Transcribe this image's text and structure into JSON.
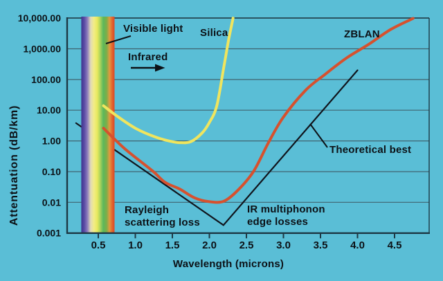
{
  "figure": {
    "background_color": "#5abed6",
    "grid_color": "#40636f",
    "frame_color": "#1d3844",
    "text_color": "#0c1116"
  },
  "chart_data": {
    "type": "line",
    "title": "",
    "xlabel": "Wavelength (microns)",
    "ylabel": "Attentuation (dB/km)",
    "y_scale": "log",
    "x_scale": "linear",
    "xlim": [
      0.08,
      4.97
    ],
    "ylim": [
      0.001,
      10000
    ],
    "grid": "horizontal",
    "legend": "inline-labels",
    "x_ticks": [
      0.5,
      1.0,
      1.5,
      2.0,
      2.5,
      3.0,
      3.5,
      4.0,
      4.5
    ],
    "x_tick_labels": [
      "0.5",
      "1.0",
      "1.5",
      "2.0",
      "2.5",
      "3.0",
      "3.5",
      "4.0",
      "4.5"
    ],
    "y_ticks": [
      10000,
      1000,
      100,
      10,
      1,
      0.1,
      0.01,
      0.001
    ],
    "y_tick_labels": [
      "10,000.00",
      "1,000.00",
      "100.00",
      "10.00",
      "1.00",
      "0.10",
      "0.01",
      "0.001"
    ],
    "series": [
      {
        "name": "Silica",
        "color": "#f0e55e",
        "stroke_width": 4,
        "smooth": true,
        "points": [
          [
            0.57,
            14
          ],
          [
            0.75,
            6.5
          ],
          [
            1.0,
            2.6
          ],
          [
            1.25,
            1.4
          ],
          [
            1.45,
            1.0
          ],
          [
            1.6,
            0.88
          ],
          [
            1.75,
            0.95
          ],
          [
            1.9,
            1.8
          ],
          [
            2.0,
            4.0
          ],
          [
            2.1,
            14
          ],
          [
            2.2,
            300
          ],
          [
            2.26,
            2000
          ],
          [
            2.32,
            10000
          ]
        ]
      },
      {
        "name": "ZBLAN",
        "color": "#d6512e",
        "stroke_width": 4,
        "smooth": true,
        "points": [
          [
            0.57,
            2.6
          ],
          [
            0.86,
            0.55
          ],
          [
            1.23,
            0.107
          ],
          [
            1.4,
            0.045
          ],
          [
            1.6,
            0.027
          ],
          [
            1.8,
            0.014
          ],
          [
            2.0,
            0.0105
          ],
          [
            2.2,
            0.011
          ],
          [
            2.4,
            0.027
          ],
          [
            2.6,
            0.105
          ],
          [
            2.8,
            0.9
          ],
          [
            3.0,
            6
          ],
          [
            3.3,
            45
          ],
          [
            3.55,
            140
          ],
          [
            3.85,
            500
          ],
          [
            4.15,
            1400
          ],
          [
            4.45,
            4300
          ],
          [
            4.75,
            9800
          ]
        ]
      },
      {
        "name": "Theoretical best",
        "color": "#10141c",
        "stroke_width": 2.2,
        "smooth": false,
        "points": [
          [
            0.2,
            3.8
          ],
          [
            2.19,
            0.0018
          ],
          [
            4.0,
            200
          ]
        ]
      }
    ],
    "visible_band": {
      "wavelength_start": 0.27,
      "wavelength_end": 0.72,
      "gradient": [
        {
          "offset": 0.0,
          "color": "#3f3690"
        },
        {
          "offset": 0.09,
          "color": "#5a4ba4"
        },
        {
          "offset": 0.18,
          "color": "#8a7abc"
        },
        {
          "offset": 0.28,
          "color": "#e0d9b8"
        },
        {
          "offset": 0.38,
          "color": "#f2ec86"
        },
        {
          "offset": 0.48,
          "color": "#e8e95e"
        },
        {
          "offset": 0.57,
          "color": "#a9d35c"
        },
        {
          "offset": 0.66,
          "color": "#5cb85c"
        },
        {
          "offset": 0.76,
          "color": "#7cae48"
        },
        {
          "offset": 0.85,
          "color": "#e09940"
        },
        {
          "offset": 0.93,
          "color": "#e2622d"
        },
        {
          "offset": 1.0,
          "color": "#d94a28"
        }
      ]
    },
    "annotations": {
      "visible_light": {
        "text": "Visible light"
      },
      "infrared": {
        "text": "Infrared",
        "arrow_direction": "right"
      },
      "silica": {
        "text": "Silica"
      },
      "zblan": {
        "text": "ZBLAN"
      },
      "theoretical_best": {
        "text": "Theoretical best"
      },
      "rayleigh": {
        "text_line1": "Rayleigh",
        "text_line2": "scattering loss"
      },
      "ir_multiphonon": {
        "text_line1": "IR multiphonon",
        "text_line2": "edge losses"
      }
    }
  }
}
